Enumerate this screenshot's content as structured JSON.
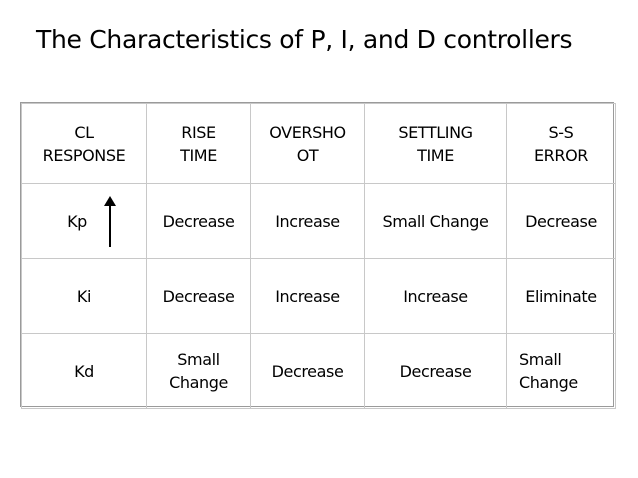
{
  "slide": {
    "title": "The Characteristics of P, I, and D controllers"
  },
  "table": {
    "header": [
      {
        "line1": "CL",
        "line2": "RESPONSE"
      },
      {
        "line1": "RISE",
        "line2": "TIME"
      },
      {
        "line1": "OVERSHO",
        "line2": "OT"
      },
      {
        "line1": "SETTLING",
        "line2": "TIME"
      },
      {
        "line1": "S-S",
        "line2": "ERROR"
      }
    ],
    "rows": [
      {
        "name": "Kp",
        "rise_time": "Decrease",
        "overshoot": "Increase",
        "settling_time": "Small Change",
        "ss_error": "Decrease"
      },
      {
        "name": "Ki",
        "rise_time": "Decrease",
        "overshoot": "Increase",
        "settling_time": "Increase",
        "ss_error": "Eliminate"
      },
      {
        "name": "Kd",
        "rise_time_line1": "Small",
        "rise_time_line2": "Change",
        "overshoot": "Decrease",
        "settling_time": "Decrease",
        "ss_error_line1": "Small",
        "ss_error_line2": "Change"
      }
    ],
    "arrow_icon": "up-arrow-icon"
  }
}
